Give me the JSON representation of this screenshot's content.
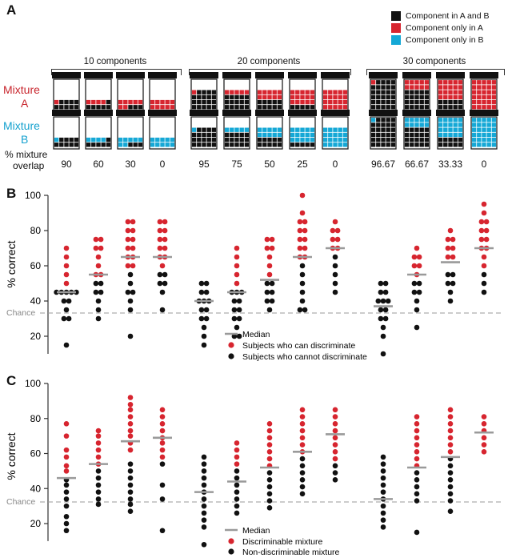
{
  "panel_labels": {
    "a": "A",
    "b": "B",
    "c": "C"
  },
  "legend_a": [
    {
      "label": "Component in A and B",
      "color": "#111111"
    },
    {
      "label": "Component only in A",
      "color": "#d7252f"
    },
    {
      "label": "Component only in B",
      "color": "#15a8d6"
    }
  ],
  "mixture_a": {
    "line1": "Mixture",
    "line2": "A",
    "color": "#c8262e"
  },
  "mixture_b": {
    "line1": "Mixture",
    "line2": "B",
    "color": "#16a2cf"
  },
  "overlap_label": {
    "line1": "% mixture",
    "line2": "overlap"
  },
  "groups": [
    {
      "title": "10 components",
      "overlaps": [
        "90",
        "60",
        "30",
        "0"
      ]
    },
    {
      "title": "20 components",
      "overlaps": [
        "95",
        "75",
        "50",
        "25",
        "0"
      ]
    },
    {
      "title": "30 components",
      "overlaps": [
        "96.67",
        "66.67",
        "33.33",
        "0"
      ]
    }
  ],
  "chart_data": [
    {
      "type": "scatter",
      "panel": "B",
      "ylabel": "% correct",
      "ylim": [
        10,
        100
      ],
      "yticks": [
        "20",
        "40",
        "60",
        "80",
        "100"
      ],
      "chance_label": "Chance",
      "chance_value": 33.3,
      "grid": false,
      "legend": [
        {
          "label": "Median",
          "color": "#a0a0a0",
          "marker": "line"
        },
        {
          "label": "Subjects who can discriminate",
          "color": "#d7252f",
          "marker": "dot"
        },
        {
          "label": "Subjects who cannot discriminate",
          "color": "#111111",
          "marker": "dot"
        }
      ],
      "columns": [
        {
          "overlap": "90",
          "median": 45,
          "red": [
            70,
            65,
            60,
            55,
            50
          ],
          "black": [
            45,
            45,
            45,
            45,
            45,
            40,
            40,
            35,
            30,
            30,
            15
          ]
        },
        {
          "overlap": "60",
          "median": 55,
          "red": [
            75,
            75,
            70,
            70,
            65,
            60,
            55,
            55
          ],
          "black": [
            50,
            50,
            45,
            45,
            40,
            35,
            30
          ]
        },
        {
          "overlap": "30",
          "median": 65,
          "red": [
            85,
            85,
            80,
            80,
            75,
            75,
            70,
            70,
            65,
            65,
            60,
            60
          ],
          "black": [
            55,
            50,
            45,
            45,
            40,
            35,
            20
          ]
        },
        {
          "overlap": "0",
          "median": 65,
          "red": [
            85,
            85,
            80,
            80,
            75,
            75,
            70,
            70,
            65,
            65,
            60
          ],
          "black": [
            55,
            55,
            50,
            50,
            45,
            35
          ]
        },
        {
          "overlap": "95",
          "median": 40,
          "red": [],
          "black": [
            50,
            50,
            45,
            45,
            40,
            40,
            40,
            35,
            35,
            30,
            30,
            25,
            20,
            15
          ]
        },
        {
          "overlap": "75",
          "median": 45,
          "red": [
            70,
            65,
            60,
            55,
            50
          ],
          "black": [
            45,
            45,
            45,
            40,
            40,
            35,
            35,
            30,
            30,
            25,
            20,
            20
          ]
        },
        {
          "overlap": "50",
          "median": 52,
          "red": [
            75,
            75,
            70,
            70,
            65,
            60,
            55
          ],
          "black": [
            50,
            50,
            45,
            45,
            40,
            40,
            35
          ]
        },
        {
          "overlap": "25",
          "median": 65,
          "red": [
            100,
            90,
            85,
            85,
            80,
            80,
            75,
            75,
            70,
            70,
            65,
            65
          ],
          "black": [
            60,
            55,
            50,
            45,
            40,
            35,
            35
          ]
        },
        {
          "overlap": "0",
          "median": 70,
          "red": [
            85,
            80,
            80,
            75,
            75,
            70,
            70
          ],
          "black": [
            65,
            60,
            55,
            50,
            45
          ]
        },
        {
          "overlap": "96.67",
          "median": 37,
          "red": [],
          "black": [
            50,
            50,
            45,
            45,
            40,
            40,
            40,
            35,
            35,
            30,
            30,
            25,
            20,
            10
          ]
        },
        {
          "overlap": "66.67",
          "median": 55,
          "red": [
            70,
            65,
            65,
            60,
            60,
            55
          ],
          "black": [
            50,
            50,
            45,
            45,
            40,
            35,
            25
          ]
        },
        {
          "overlap": "33.33",
          "median": 62,
          "red": [
            80,
            75,
            75,
            70,
            70,
            65,
            65
          ],
          "black": [
            55,
            55,
            50,
            50,
            45,
            40
          ]
        },
        {
          "overlap": "0",
          "median": 70,
          "red": [
            95,
            90,
            85,
            85,
            80,
            80,
            75,
            75,
            70,
            70,
            65,
            60
          ],
          "black": [
            55,
            50,
            45
          ]
        }
      ]
    },
    {
      "type": "scatter",
      "panel": "C",
      "ylabel": "% correct",
      "ylim": [
        10,
        100
      ],
      "yticks": [
        "20",
        "40",
        "60",
        "80",
        "100"
      ],
      "chance_label": "Chance",
      "chance_value": 33.3,
      "grid": false,
      "legend": [
        {
          "label": "Median",
          "color": "#a0a0a0",
          "marker": "line"
        },
        {
          "label": "Discriminable mixture",
          "color": "#d7252f",
          "marker": "dot"
        },
        {
          "label": "Non-discriminable mixture",
          "color": "#111111",
          "marker": "dot"
        }
      ],
      "columns": [
        {
          "overlap": "90",
          "median": 46,
          "red": [
            77,
            70,
            62,
            58,
            53,
            50
          ],
          "black": [
            45,
            42,
            38,
            34,
            30,
            24,
            20,
            16
          ]
        },
        {
          "overlap": "60",
          "median": 54,
          "red": [
            73,
            70,
            66,
            62,
            58,
            54
          ],
          "black": [
            50,
            46,
            42,
            38,
            34,
            31
          ]
        },
        {
          "overlap": "30",
          "median": 67,
          "red": [
            92,
            88,
            85,
            81,
            77,
            73,
            70,
            66,
            62
          ],
          "black": [
            54,
            50,
            46,
            42,
            38,
            34,
            31,
            27
          ]
        },
        {
          "overlap": "0",
          "median": 69,
          "red": [
            85,
            81,
            77,
            73,
            69,
            66,
            62,
            58
          ],
          "black": [
            54,
            42,
            34,
            16
          ]
        },
        {
          "overlap": "95",
          "median": 38,
          "red": [],
          "black": [
            58,
            54,
            50,
            46,
            42,
            38,
            34,
            30,
            26,
            22,
            18,
            8
          ]
        },
        {
          "overlap": "75",
          "median": 44,
          "red": [
            66,
            62,
            58,
            54
          ],
          "black": [
            50,
            46,
            42,
            38,
            34,
            30,
            26
          ]
        },
        {
          "overlap": "50",
          "median": 52,
          "red": [
            77,
            73,
            69,
            65,
            61,
            57,
            53
          ],
          "black": [
            49,
            45,
            41,
            37,
            33,
            29
          ]
        },
        {
          "overlap": "25",
          "median": 61,
          "red": [
            85,
            81,
            77,
            73,
            69,
            65,
            61
          ],
          "black": [
            57,
            53,
            49,
            45,
            41,
            37
          ]
        },
        {
          "overlap": "0",
          "median": 71,
          "red": [
            85,
            81,
            77,
            73,
            69,
            65,
            61,
            57
          ],
          "black": [
            53,
            49,
            45
          ]
        },
        {
          "overlap": "96.67",
          "median": 34,
          "red": [],
          "black": [
            58,
            54,
            50,
            46,
            42,
            38,
            34,
            30,
            26,
            22,
            18
          ]
        },
        {
          "overlap": "66.67",
          "median": 52,
          "red": [
            81,
            77,
            73,
            69,
            65,
            61,
            57,
            53
          ],
          "black": [
            49,
            45,
            41,
            37,
            33,
            15
          ]
        },
        {
          "overlap": "33.33",
          "median": 58,
          "red": [
            85,
            81,
            77,
            73,
            69,
            65,
            61
          ],
          "black": [
            57,
            53,
            49,
            45,
            41,
            37,
            33,
            27
          ]
        },
        {
          "overlap": "0",
          "median": 72,
          "red": [
            81,
            77,
            73,
            69,
            65,
            61
          ],
          "black": []
        }
      ]
    }
  ]
}
